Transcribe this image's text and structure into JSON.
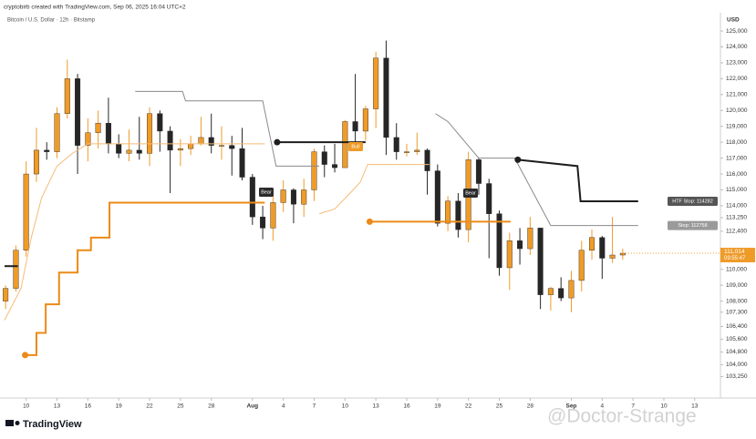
{
  "header": "cryptobirb created with TradingView.com, Sep 06, 2025 16:04 UTC+2",
  "brand": "TradingView",
  "watermark": "@Doctor-Strange",
  "chart_data": {
    "type": "candlestick",
    "title": "Bitcoin / U.S. Dollar · 12h · Bitstamp",
    "currency": "USD",
    "up_color": "#ef9b28",
    "down_color": "#262626",
    "open": [
      108000,
      108800,
      111200,
      116000,
      117500,
      117400,
      119800,
      122000,
      117800,
      118600,
      119200,
      117900,
      117300,
      117500,
      117300,
      119800,
      118700,
      117500,
      117600,
      117900,
      118300,
      117800,
      117800,
      117600,
      115800,
      113300,
      112600,
      114200,
      115000,
      114100,
      115000,
      117400,
      116600,
      116400,
      119300,
      118700,
      120100,
      123300,
      118300,
      117400,
      117400,
      117500,
      116200,
      112900,
      114300,
      112500,
      116900,
      115400,
      113500,
      110100,
      111800,
      111300,
      112600,
      108400,
      108800,
      108200,
      109300,
      111200,
      112000,
      110700,
      110900
    ],
    "high": [
      109000,
      111500,
      116800,
      118900,
      118000,
      120200,
      123200,
      122300,
      119500,
      120000,
      120800,
      118500,
      118800,
      119600,
      120200,
      120000,
      119000,
      118200,
      118400,
      119600,
      119800,
      119000,
      118400,
      118900,
      116000,
      114000,
      114800,
      115600,
      115100,
      115700,
      117600,
      117800,
      117900,
      119400,
      122300,
      120300,
      123700,
      124400,
      119200,
      117900,
      118600,
      117600,
      116600,
      114600,
      114800,
      117400,
      117000,
      115700,
      113700,
      112300,
      112600,
      113300,
      112600,
      108900,
      109500,
      109900,
      111800,
      112500,
      112100,
      113300,
      111300
    ],
    "low": [
      107500,
      108600,
      110800,
      115500,
      116900,
      117000,
      119500,
      116000,
      116800,
      117600,
      117300,
      117000,
      116800,
      116900,
      116500,
      117400,
      114800,
      116500,
      117200,
      117800,
      117300,
      116900,
      115900,
      115600,
      112800,
      111900,
      111800,
      113600,
      112900,
      113300,
      114300,
      115800,
      116100,
      116400,
      118000,
      118100,
      118900,
      117200,
      116900,
      117100,
      117200,
      114700,
      112700,
      112400,
      112000,
      111700,
      114700,
      110700,
      109600,
      108700,
      110300,
      110900,
      107500,
      107400,
      108000,
      107300,
      108600,
      110600,
      109400,
      110400,
      110600
    ],
    "close": [
      108800,
      111200,
      116000,
      117500,
      117400,
      119800,
      122000,
      117800,
      118600,
      119200,
      117900,
      117300,
      117500,
      117300,
      119800,
      118700,
      117500,
      117600,
      117900,
      118300,
      117800,
      117800,
      117600,
      115800,
      113300,
      112600,
      114200,
      115000,
      114100,
      115000,
      117400,
      116600,
      116400,
      119300,
      118700,
      120100,
      123300,
      118300,
      117400,
      117400,
      117500,
      116200,
      112900,
      114300,
      112500,
      116900,
      115400,
      113500,
      110100,
      111800,
      111300,
      112600,
      108400,
      108800,
      108200,
      109300,
      111200,
      112000,
      110700,
      110900,
      111014
    ],
    "last_label": "111,014",
    "countdown": "09:55:47",
    "overlays": [
      {
        "color": "#f6bb78",
        "width": 1,
        "x": [
          -0.1,
          1.5,
          2.5,
          3.5,
          5.0,
          6.5,
          8.0,
          25.2,
          null,
          30.5,
          32,
          33.5,
          34.5,
          35.2,
          41.2
        ],
        "values": [
          106800,
          108800,
          112000,
          114500,
          116500,
          117300,
          117900,
          117900,
          null,
          113500,
          113800,
          114800,
          115500,
          116600,
          116600
        ]
      },
      {
        "color": "#8a8a8a",
        "width": 1,
        "x": [
          12.6,
          17.2,
          17.5,
          25,
          26.3,
          30.5,
          null,
          41.8,
          43,
          46,
          49.5,
          53,
          61.5
        ],
        "values": [
          121200,
          121200,
          120600,
          120600,
          116500,
          116500,
          null,
          119800,
          119300,
          117000,
          117000,
          112758,
          112758
        ]
      },
      {
        "color": "#ec8a17",
        "width": 2,
        "start_dot": true,
        "x": [
          1.9,
          3.0,
          3.0,
          3.9,
          3.9,
          5.2,
          5.2,
          7.0,
          7.0,
          8.3,
          8.3,
          10.1,
          10.1,
          25.2,
          null,
          35.4,
          49.1
        ],
        "values": [
          104600,
          104600,
          106000,
          106000,
          107800,
          107800,
          109800,
          109800,
          111200,
          111200,
          112000,
          112000,
          114200,
          114200,
          null,
          113000,
          113000
        ]
      },
      {
        "color": "#1e1e1e",
        "width": 2,
        "start_dot": true,
        "x": [
          -0.1,
          1.2,
          null,
          26.4,
          35,
          null,
          49.8,
          55.6,
          55.9,
          61.5
        ],
        "values": [
          110200,
          110200,
          null,
          118000,
          118000,
          null,
          116900,
          116500,
          114282,
          114282
        ]
      }
    ],
    "stop_labels": [
      {
        "label": "HTF Stop: 114282",
        "value": 114282,
        "color": "#555555"
      },
      {
        "label": "Stop: 112758",
        "value": 112758,
        "color": "#9a9a9a"
      }
    ],
    "signals": [
      "Bear",
      "Bull",
      "Bear"
    ],
    "xlim": [
      -0.1,
      69.5
    ],
    "ylim": [
      101900,
      126150
    ],
    "xticks": [
      {
        "value": 2,
        "label": "10"
      },
      {
        "value": 5,
        "label": "13"
      },
      {
        "value": 8,
        "label": "16"
      },
      {
        "value": 11,
        "label": "19"
      },
      {
        "value": 14,
        "label": "22"
      },
      {
        "value": 17,
        "label": "25"
      },
      {
        "value": 20,
        "label": "28"
      },
      {
        "value": 24,
        "label": "Aug"
      },
      {
        "value": 27,
        "label": "4"
      },
      {
        "value": 30,
        "label": "7"
      },
      {
        "value": 33,
        "label": "10"
      },
      {
        "value": 36,
        "label": "13"
      },
      {
        "value": 39,
        "label": "16"
      },
      {
        "value": 42,
        "label": "19"
      },
      {
        "value": 45,
        "label": "22"
      },
      {
        "value": 48,
        "label": "25"
      },
      {
        "value": 51,
        "label": "28"
      },
      {
        "value": 55,
        "label": "Sep"
      },
      {
        "value": 58,
        "label": "4"
      },
      {
        "value": 61,
        "label": "7"
      },
      {
        "value": 64,
        "label": "10"
      },
      {
        "value": 67,
        "label": "13"
      }
    ],
    "yticks": [
      {
        "value": 125000,
        "label": "125,000"
      },
      {
        "value": 124000,
        "label": "124,000"
      },
      {
        "value": 123000,
        "label": "123,000"
      },
      {
        "value": 122000,
        "label": "122,000"
      },
      {
        "value": 121000,
        "label": "121,000"
      },
      {
        "value": 120000,
        "label": "120,000"
      },
      {
        "value": 119000,
        "label": "119,000"
      },
      {
        "value": 118000,
        "label": "118,000"
      },
      {
        "value": 117000,
        "label": "117,000"
      },
      {
        "value": 116000,
        "label": "116,000"
      },
      {
        "value": 115000,
        "label": "115,000"
      },
      {
        "value": 114000,
        "label": "114,000"
      },
      {
        "value": 113250,
        "label": "113,250"
      },
      {
        "value": 112400,
        "label": "112,400"
      },
      {
        "value": 110000,
        "label": "110,000"
      },
      {
        "value": 109000,
        "label": "109,000"
      },
      {
        "value": 108000,
        "label": "108,000"
      },
      {
        "value": 107300,
        "label": "107,300"
      },
      {
        "value": 106400,
        "label": "106,400"
      },
      {
        "value": 105600,
        "label": "105,600"
      },
      {
        "value": 104800,
        "label": "104,800"
      },
      {
        "value": 104000,
        "label": "104,000"
      },
      {
        "value": 103250,
        "label": "103,250"
      }
    ]
  }
}
